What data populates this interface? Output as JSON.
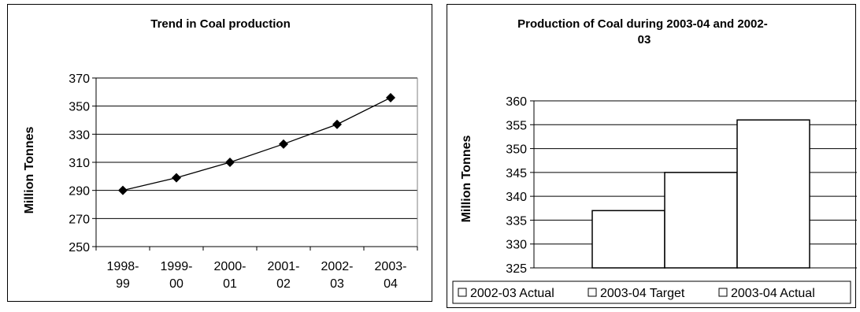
{
  "chart_data": [
    {
      "type": "line",
      "title": "Trend in Coal production",
      "xlabel": "",
      "ylabel": "Million Tonnes",
      "categories": [
        [
          "1998-",
          "99"
        ],
        [
          "1999-",
          "00"
        ],
        [
          "2000-",
          "01"
        ],
        [
          "2001-",
          "02"
        ],
        [
          "2002-",
          "03"
        ],
        [
          "2003-",
          "04"
        ]
      ],
      "series": [
        {
          "values": [
            290,
            299,
            310,
            323,
            337,
            356
          ],
          "color": "#000000",
          "marker": "diamond"
        }
      ],
      "ylim": [
        250,
        370
      ],
      "yticks": [
        250,
        270,
        290,
        310,
        330,
        350,
        370
      ],
      "grid": true
    },
    {
      "type": "bar",
      "title": [
        "Production of Coal during 2003-04 and 2002-",
        "03"
      ],
      "xlabel": "",
      "ylabel": "Million Tonnes",
      "series": [
        {
          "name": "2002-03 Actual",
          "values": [
            337
          ]
        },
        {
          "name": "2003-04 Target",
          "values": [
            345
          ]
        },
        {
          "name": "2003-04 Actual",
          "values": [
            356
          ]
        }
      ],
      "ylim": [
        325,
        360
      ],
      "yticks": [
        325,
        330,
        335,
        340,
        345,
        350,
        355,
        360
      ],
      "grid": true,
      "legend": "bottom"
    }
  ]
}
